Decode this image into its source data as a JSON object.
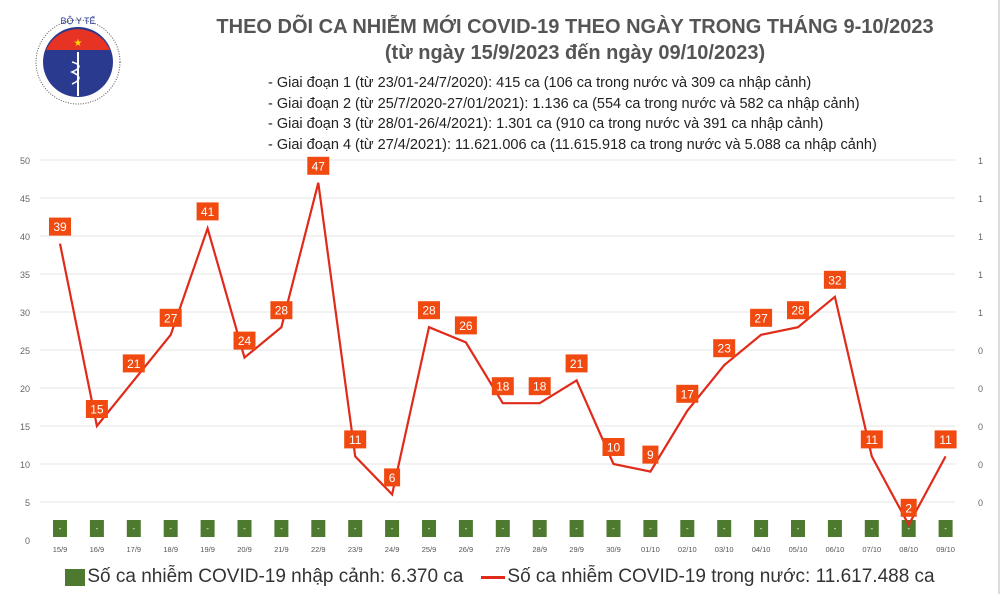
{
  "header": {
    "title": "THEO DÕI CA NHIỄM MỚI COVID-19 THEO NGÀY TRONG THÁNG 9-10/2023",
    "subtitle": "(từ ngày 15/9/2023 đến ngày 09/10/2023)",
    "notes": [
      "- Giai đoạn 1 (từ 23/01-24/7/2020): 415 ca (106 ca trong nước và 309 ca nhập cảnh)",
      "- Giai đoạn 2 (từ 25/7/2020-27/01/2021): 1.136 ca (554 ca trong nước và 582 ca nhập cảnh)",
      "- Giai đoạn 3 (từ 28/01-26/4/2021): 1.301 ca (910 ca trong nước và 391 ca nhập cảnh)",
      "- Giai đoạn 4 (từ 27/4/2021): 11.621.006 ca (11.615.918 ca trong nước và 5.088 ca nhập cảnh)"
    ],
    "logo_text": "BỘ Y TẾ MINISTRY OF HEALTH"
  },
  "chart_data": {
    "type": "line",
    "categories": [
      "15/9",
      "16/9",
      "17/9",
      "18/9",
      "19/9",
      "20/9",
      "21/9",
      "22/9",
      "23/9",
      "24/9",
      "25/9",
      "26/9",
      "27/9",
      "28/9",
      "29/9",
      "30/9",
      "01/10",
      "02/10",
      "03/10",
      "04/10",
      "05/10",
      "06/10",
      "07/10",
      "08/10",
      "09/10"
    ],
    "series": [
      {
        "name": "Số ca nhiễm COVID-19 trong nước: 11.617.488 ca",
        "type": "line",
        "color": "#e02a1a",
        "label_color": "#f04a10",
        "values": [
          39,
          15,
          21,
          27,
          41,
          24,
          28,
          47,
          11,
          6,
          28,
          26,
          18,
          18,
          21,
          10,
          9,
          17,
          23,
          27,
          28,
          32,
          11,
          2,
          11
        ]
      },
      {
        "name": "Số ca nhiễm COVID-19 nhập cảnh: 6.370 ca",
        "type": "bar",
        "color": "#4e7a30",
        "labels": [
          "-",
          "-",
          "-",
          "-",
          "-",
          "-",
          "-",
          "-",
          "-",
          "-",
          "-",
          "-",
          "-",
          "-",
          "-",
          "-",
          "-",
          "-",
          "-",
          "-",
          "-",
          "-",
          "-",
          "-",
          "-"
        ]
      }
    ],
    "ylim": [
      0,
      50
    ],
    "yticks": [
      0,
      5,
      10,
      15,
      20,
      25,
      30,
      35,
      40,
      45,
      50
    ],
    "y2ticks": [
      "",
      "0",
      "0",
      "0",
      "0",
      "0",
      "1",
      "1",
      "1",
      "1",
      "1"
    ],
    "grid": true,
    "legend": "bottom"
  }
}
